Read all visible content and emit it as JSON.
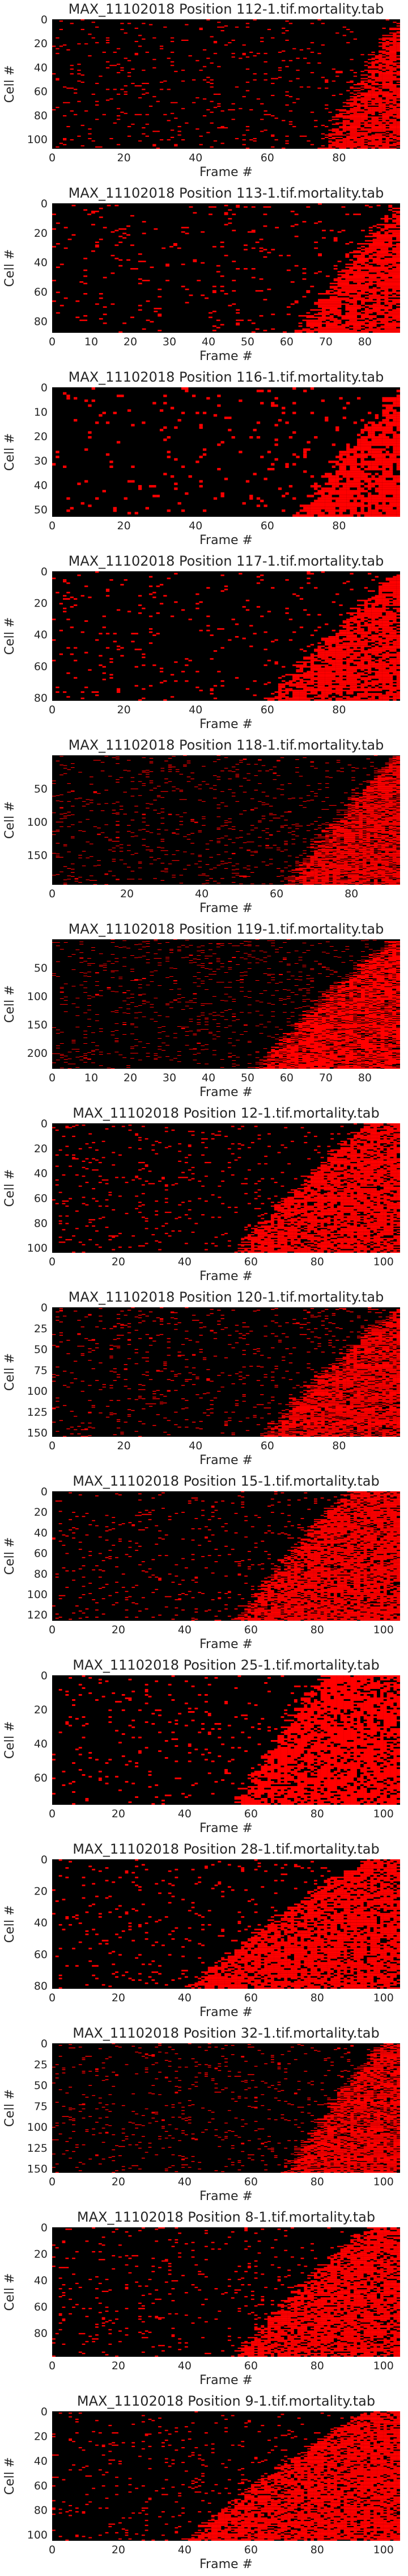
{
  "figure": {
    "background": "#ffffff",
    "heatmap_background": "#000000",
    "mark_color": "#ff0000",
    "text_color": "#262626"
  },
  "chart_data": [
    {
      "type": "heatmap",
      "title": "MAX_11102018 Position 112-1.tif.mortality.tab",
      "xlabel": "Frame #",
      "ylabel": "Cell #",
      "xlim": [
        0,
        97
      ],
      "ylim": [
        108,
        0
      ],
      "x_ticks": [
        "0",
        "20",
        "40",
        "60",
        "80"
      ],
      "y_ticks": [
        "0",
        "20",
        "40",
        "60",
        "80",
        "100"
      ],
      "colormap": [
        "#000000",
        "#ff0000"
      ],
      "pattern": {
        "onset_start": 97,
        "onset_end": 75,
        "block_start": null
      }
    },
    {
      "type": "heatmap",
      "title": "MAX_11102018 Position 113-1.tif.mortality.tab",
      "xlabel": "Frame #",
      "ylabel": "Cell #",
      "xlim": [
        0,
        89
      ],
      "ylim": [
        88,
        0
      ],
      "x_ticks": [
        "0",
        "10",
        "20",
        "30",
        "40",
        "50",
        "60",
        "70",
        "80"
      ],
      "y_ticks": [
        "0",
        "20",
        "40",
        "60",
        "80"
      ],
      "colormap": [
        "#000000",
        "#ff0000"
      ],
      "pattern": {
        "onset_start": 89,
        "onset_end": 63,
        "block_start": null
      }
    },
    {
      "type": "heatmap",
      "title": "MAX_11102018 Position 116-1.tif.mortality.tab",
      "xlabel": "Frame #",
      "ylabel": "Cell #",
      "xlim": [
        0,
        97
      ],
      "ylim": [
        53,
        0
      ],
      "x_ticks": [
        "0",
        "20",
        "40",
        "60",
        "80"
      ],
      "y_ticks": [
        "0",
        "10",
        "20",
        "30",
        "40",
        "50"
      ],
      "colormap": [
        "#000000",
        "#ff0000"
      ],
      "pattern": {
        "onset_start": 97,
        "onset_end": 68,
        "block_start": null
      }
    },
    {
      "type": "heatmap",
      "title": "MAX_11102018 Position 117-1.tif.mortality.tab",
      "xlabel": "Frame #",
      "ylabel": "Cell #",
      "xlim": [
        0,
        97
      ],
      "ylim": [
        82,
        0
      ],
      "x_ticks": [
        "0",
        "20",
        "40",
        "60",
        "80"
      ],
      "y_ticks": [
        "0",
        "20",
        "40",
        "60",
        "80"
      ],
      "colormap": [
        "#000000",
        "#ff0000"
      ],
      "pattern": {
        "onset_start": 97,
        "onset_end": 60,
        "block_start": null
      }
    },
    {
      "type": "heatmap",
      "title": "MAX_11102018 Position 118-1.tif.mortality.tab",
      "xlabel": "Frame #",
      "ylabel": "Cell #",
      "xlim": [
        0,
        93
      ],
      "ylim": [
        195,
        0
      ],
      "x_ticks": [
        "0",
        "20",
        "40",
        "60",
        "80"
      ],
      "y_ticks": [
        "50",
        "100",
        "150"
      ],
      "colormap": [
        "#000000",
        "#ff0000"
      ],
      "pattern": {
        "onset_start": 92,
        "onset_end": 62,
        "block_start": null
      }
    },
    {
      "type": "heatmap",
      "title": "MAX_11102018 Position 119-1.tif.mortality.tab",
      "xlabel": "Frame #",
      "ylabel": "Cell #",
      "xlim": [
        0,
        89
      ],
      "ylim": [
        228,
        0
      ],
      "x_ticks": [
        "0",
        "10",
        "20",
        "30",
        "40",
        "50",
        "60",
        "70",
        "80"
      ],
      "y_ticks": [
        "50",
        "100",
        "150",
        "200"
      ],
      "colormap": [
        "#000000",
        "#ff0000"
      ],
      "pattern": {
        "onset_start": 87,
        "onset_end": 52,
        "block_start": null
      }
    },
    {
      "type": "heatmap",
      "title": "MAX_11102018 Position 12-1.tif.mortality.tab",
      "xlabel": "Frame #",
      "ylabel": "Cell #",
      "xlim": [
        0,
        105
      ],
      "ylim": [
        104,
        0
      ],
      "x_ticks": [
        "0",
        "20",
        "40",
        "60",
        "80",
        "100"
      ],
      "y_ticks": [
        "0",
        "20",
        "40",
        "60",
        "80",
        "100"
      ],
      "colormap": [
        "#000000",
        "#ff0000"
      ],
      "pattern": {
        "onset_start": 95,
        "onset_end": 55,
        "block_start": 80
      }
    },
    {
      "type": "heatmap",
      "title": "MAX_11102018 Position 120-1.tif.mortality.tab",
      "xlabel": "Frame #",
      "ylabel": "Cell #",
      "xlim": [
        0,
        97
      ],
      "ylim": [
        155,
        0
      ],
      "x_ticks": [
        "0",
        "20",
        "40",
        "60",
        "80"
      ],
      "y_ticks": [
        "0",
        "25",
        "50",
        "75",
        "100",
        "125",
        "150"
      ],
      "colormap": [
        "#000000",
        "#ff0000"
      ],
      "pattern": {
        "onset_start": 97,
        "onset_end": 58,
        "block_start": null
      }
    },
    {
      "type": "heatmap",
      "title": "MAX_11102018 Position 15-1.tif.mortality.tab",
      "xlabel": "Frame #",
      "ylabel": "Cell #",
      "xlim": [
        0,
        105
      ],
      "ylim": [
        126,
        0
      ],
      "x_ticks": [
        "0",
        "20",
        "40",
        "60",
        "80",
        "100"
      ],
      "y_ticks": [
        "0",
        "20",
        "40",
        "60",
        "80",
        "100",
        "120"
      ],
      "colormap": [
        "#000000",
        "#ff0000"
      ],
      "pattern": {
        "onset_start": 90,
        "onset_end": 55,
        "block_start": 82
      }
    },
    {
      "type": "heatmap",
      "title": "MAX_11102018 Position 25-1.tif.mortality.tab",
      "xlabel": "Frame #",
      "ylabel": "Cell #",
      "xlim": [
        0,
        105
      ],
      "ylim": [
        76,
        0
      ],
      "x_ticks": [
        "0",
        "20",
        "40",
        "60",
        "80",
        "100"
      ],
      "y_ticks": [
        "0",
        "20",
        "40",
        "60"
      ],
      "colormap": [
        "#000000",
        "#ff0000"
      ],
      "pattern": {
        "onset_start": 82,
        "onset_end": 55,
        "block_start": 78
      }
    },
    {
      "type": "heatmap",
      "title": "MAX_11102018 Position 28-1.tif.mortality.tab",
      "xlabel": "Frame #",
      "ylabel": "Cell #",
      "xlim": [
        0,
        105
      ],
      "ylim": [
        82,
        0
      ],
      "x_ticks": [
        "0",
        "20",
        "40",
        "60",
        "80",
        "100"
      ],
      "y_ticks": [
        "0",
        "20",
        "40",
        "60",
        "80"
      ],
      "colormap": [
        "#000000",
        "#ff0000"
      ],
      "pattern": {
        "onset_start": 95,
        "onset_end": 40,
        "block_start": 88
      }
    },
    {
      "type": "heatmap",
      "title": "MAX_11102018 Position 32-1.tif.mortality.tab",
      "xlabel": "Frame #",
      "ylabel": "Cell #",
      "xlim": [
        0,
        105
      ],
      "ylim": [
        155,
        0
      ],
      "x_ticks": [
        "0",
        "20",
        "40",
        "60",
        "80",
        "100"
      ],
      "y_ticks": [
        "0",
        "25",
        "50",
        "75",
        "100",
        "125",
        "150"
      ],
      "colormap": [
        "#000000",
        "#ff0000"
      ],
      "pattern": {
        "onset_start": 100,
        "onset_end": 70,
        "block_start": 86
      }
    },
    {
      "type": "heatmap",
      "title": "MAX_11102018 Position 8-1.tif.mortality.tab",
      "xlabel": "Frame #",
      "ylabel": "Cell #",
      "xlim": [
        0,
        105
      ],
      "ylim": [
        98,
        0
      ],
      "x_ticks": [
        "0",
        "20",
        "40",
        "60",
        "80",
        "100"
      ],
      "y_ticks": [
        "0",
        "20",
        "40",
        "60",
        "80"
      ],
      "colormap": [
        "#000000",
        "#ff0000"
      ],
      "pattern": {
        "onset_start": 95,
        "onset_end": 55,
        "block_start": 84
      }
    },
    {
      "type": "heatmap",
      "title": "MAX_11102018 Position 9-1.tif.mortality.tab",
      "xlabel": "Frame #",
      "ylabel": "Cell #",
      "xlim": [
        0,
        105
      ],
      "ylim": [
        105,
        0
      ],
      "x_ticks": [
        "0",
        "20",
        "40",
        "60",
        "80",
        "100"
      ],
      "y_ticks": [
        "0",
        "20",
        "40",
        "60",
        "80",
        "100"
      ],
      "colormap": [
        "#000000",
        "#ff0000"
      ],
      "pattern": {
        "onset_start": 95,
        "onset_end": 40,
        "block_start": 80
      }
    }
  ]
}
